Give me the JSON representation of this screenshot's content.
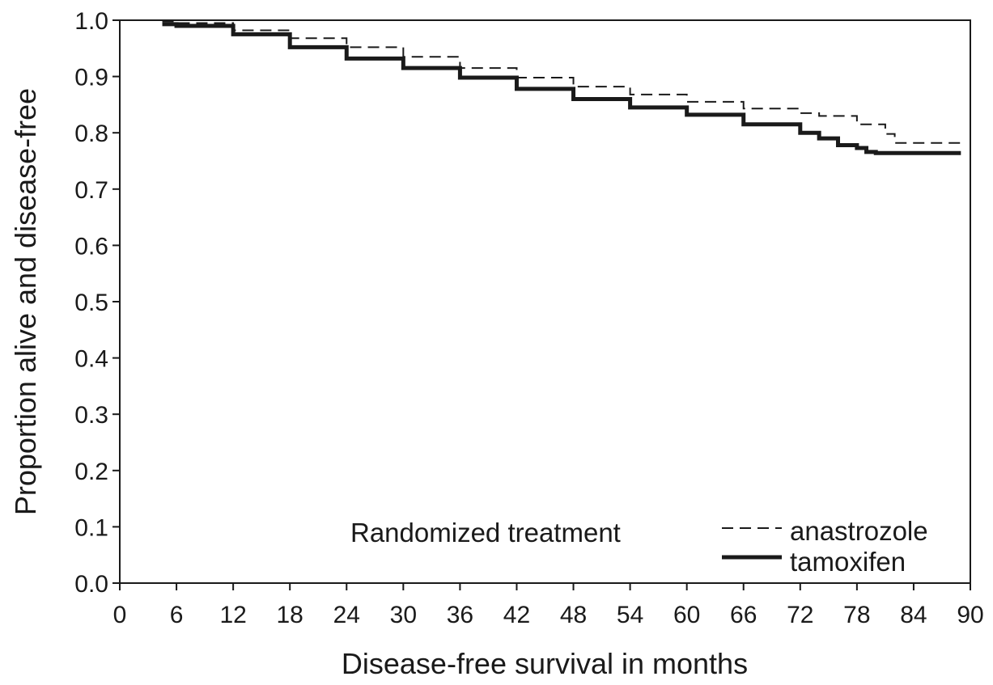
{
  "chart_data": {
    "type": "line",
    "title": "",
    "xlabel": "Disease-free survival in months",
    "ylabel": "Proportion alive and disease-free",
    "xlim": [
      0,
      90
    ],
    "ylim": [
      0.0,
      1.0
    ],
    "xticks": [
      "0",
      "6",
      "12",
      "18",
      "24",
      "30",
      "36",
      "42",
      "48",
      "54",
      "60",
      "66",
      "72",
      "78",
      "84",
      "90"
    ],
    "yticks": [
      "0.0",
      "0.1",
      "0.2",
      "0.3",
      "0.4",
      "0.5",
      "0.6",
      "0.7",
      "0.8",
      "0.9",
      "1.0"
    ],
    "grid": false,
    "legend": {
      "title": "Randomized treatment",
      "placement": "bottom-right"
    },
    "series": [
      {
        "name": "anastrozole",
        "style": "dashed",
        "x": [
          4.5,
          6,
          12,
          18,
          24,
          30,
          36,
          42,
          48,
          54,
          60,
          66,
          72,
          74,
          78,
          81,
          82,
          89
        ],
        "y": [
          0.998,
          0.995,
          0.982,
          0.968,
          0.952,
          0.935,
          0.915,
          0.898,
          0.882,
          0.868,
          0.855,
          0.843,
          0.835,
          0.83,
          0.815,
          0.798,
          0.782,
          0.783
        ]
      },
      {
        "name": "tamoxifen",
        "style": "solid",
        "x": [
          4.5,
          6,
          12,
          18,
          24,
          30,
          36,
          42,
          48,
          54,
          60,
          66,
          72,
          74,
          76,
          78,
          79,
          80,
          89
        ],
        "y": [
          0.993,
          0.99,
          0.975,
          0.952,
          0.932,
          0.915,
          0.898,
          0.878,
          0.86,
          0.845,
          0.832,
          0.815,
          0.8,
          0.79,
          0.778,
          0.773,
          0.766,
          0.764,
          0.764
        ]
      }
    ]
  }
}
